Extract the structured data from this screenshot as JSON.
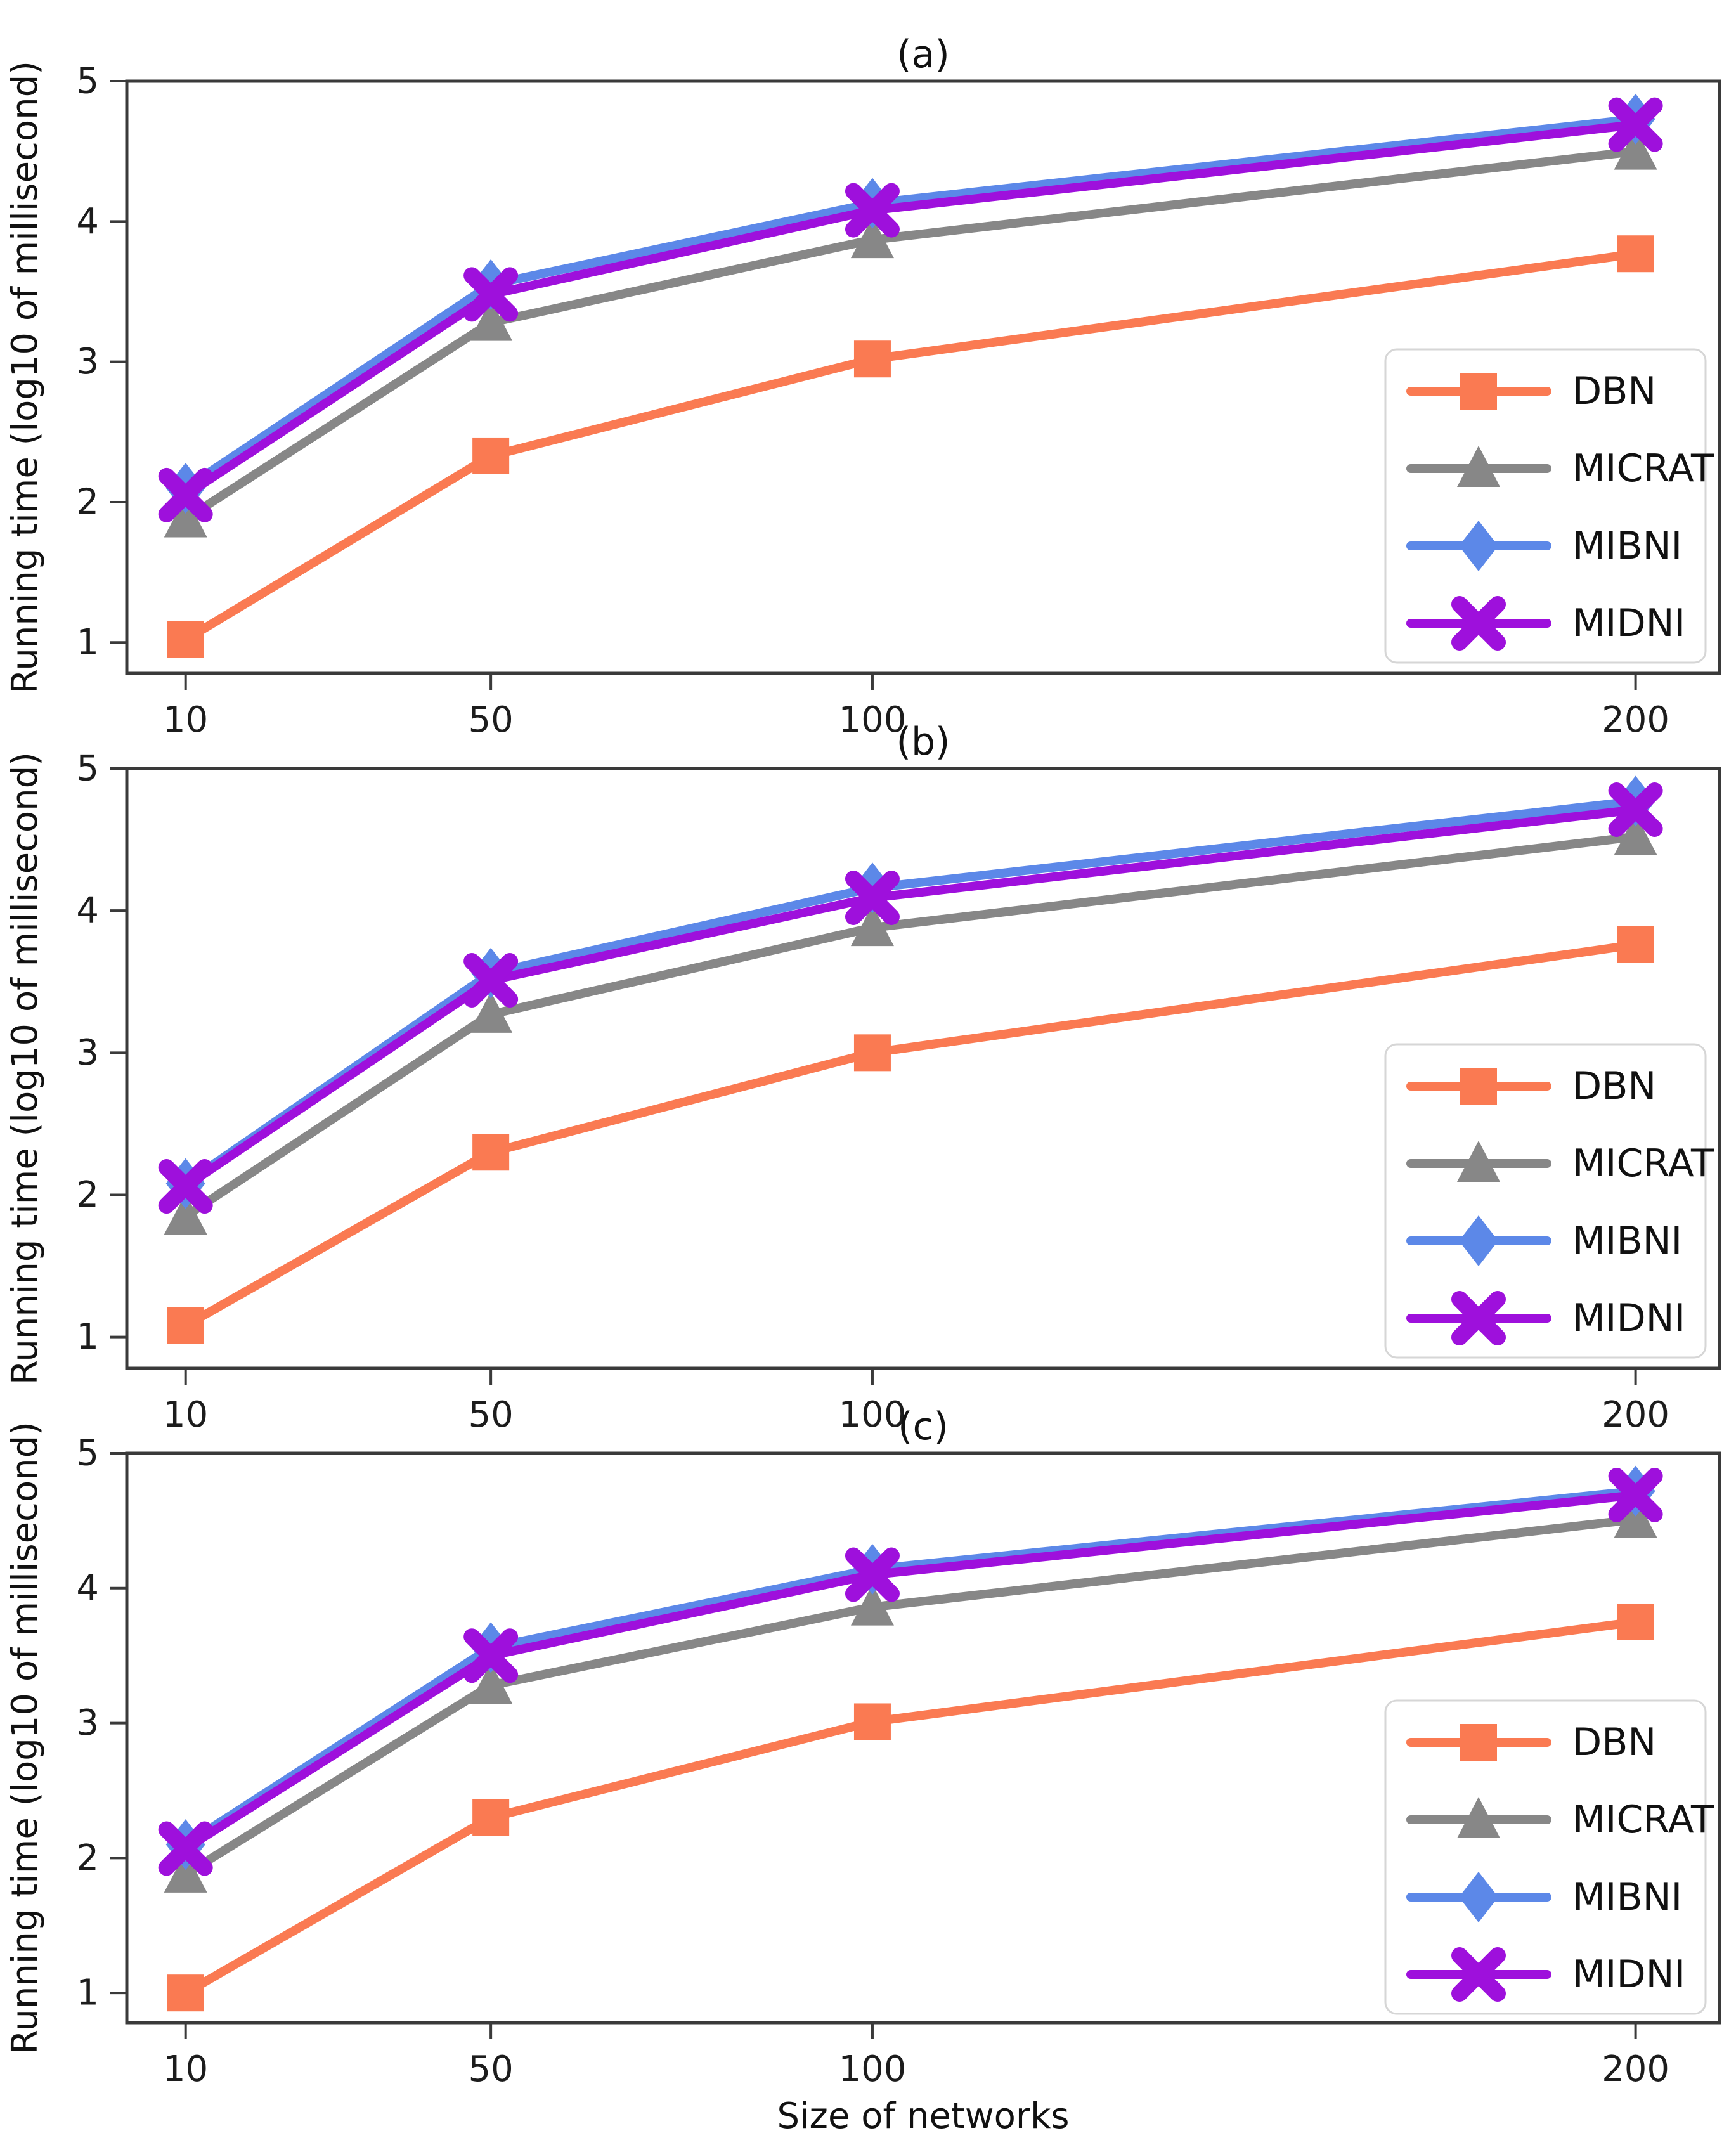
{
  "figure": {
    "ylabel": "Running time (log10 of millisecond)",
    "xlabel": "Size of networks",
    "background": "#ffffff",
    "text_color": "#1c1c1c",
    "spine_color": "#3a3a3a"
  },
  "legend": {
    "position": "lower right",
    "entries": [
      {
        "label": "DBN",
        "marker": "square-marker-icon",
        "marker_shape": "square",
        "color": "#FA7A52"
      },
      {
        "label": "MICRAT",
        "marker": "triangle-marker-icon",
        "marker_shape": "triangle-up",
        "color": "#878787"
      },
      {
        "label": "MIBNI",
        "marker": "diamond-marker-icon",
        "marker_shape": "diamond",
        "color": "#5C88E8"
      },
      {
        "label": "MIDNI",
        "marker": "x-marker-icon",
        "marker_shape": "x",
        "color": "#9E10DC"
      }
    ]
  },
  "chart_data": [
    {
      "type": "line",
      "title": "(a)",
      "xlabel": "",
      "ylabel": "Running time (log10 of millisecond)",
      "x": [
        10,
        50,
        100,
        200
      ],
      "x_tick_labels": [
        "10",
        "50",
        "100",
        "200"
      ],
      "y_ticks": [
        1,
        2,
        3,
        4,
        5
      ],
      "y_tick_labels": [
        "1",
        "2",
        "3",
        "4",
        "5"
      ],
      "xlim": [
        2.3,
        211
      ],
      "ylim": [
        0.78,
        5
      ],
      "grid": false,
      "legend_position": "lower right",
      "series": [
        {
          "name": "DBN",
          "color": "#FA7A52",
          "marker": "square",
          "values": [
            1.02,
            2.33,
            3.02,
            3.77
          ]
        },
        {
          "name": "MICRAT",
          "color": "#878787",
          "marker": "triangle-up",
          "values": [
            1.88,
            3.28,
            3.87,
            4.5
          ]
        },
        {
          "name": "MIBNI",
          "color": "#5C88E8",
          "marker": "diamond",
          "values": [
            2.1,
            3.55,
            4.13,
            4.73
          ]
        },
        {
          "name": "MIDNI",
          "color": "#9E10DC",
          "marker": "x",
          "values": [
            2.05,
            3.48,
            4.08,
            4.69
          ]
        }
      ]
    },
    {
      "type": "line",
      "title": "(b)",
      "xlabel": "",
      "ylabel": "Running time (log10 of millisecond)",
      "x": [
        10,
        50,
        100,
        200
      ],
      "x_tick_labels": [
        "10",
        "50",
        "100",
        "200"
      ],
      "y_ticks": [
        1,
        2,
        3,
        4,
        5
      ],
      "y_tick_labels": [
        "1",
        "2",
        "3",
        "4",
        "5"
      ],
      "xlim": [
        2.3,
        211
      ],
      "ylim": [
        0.78,
        5
      ],
      "grid": false,
      "legend_position": "lower right",
      "series": [
        {
          "name": "DBN",
          "color": "#FA7A52",
          "marker": "square",
          "values": [
            1.08,
            2.3,
            3.0,
            3.76
          ]
        },
        {
          "name": "MICRAT",
          "color": "#878787",
          "marker": "triangle-up",
          "values": [
            1.85,
            3.27,
            3.88,
            4.52
          ]
        },
        {
          "name": "MIBNI",
          "color": "#5C88E8",
          "marker": "diamond",
          "values": [
            2.08,
            3.56,
            4.16,
            4.77
          ]
        },
        {
          "name": "MIDNI",
          "color": "#9E10DC",
          "marker": "x",
          "values": [
            2.06,
            3.51,
            4.09,
            4.71
          ]
        }
      ]
    },
    {
      "type": "line",
      "title": "(c)",
      "xlabel": "Size of networks",
      "ylabel": "Running time (log10 of millisecond)",
      "x": [
        10,
        50,
        100,
        200
      ],
      "x_tick_labels": [
        "10",
        "50",
        "100",
        "200"
      ],
      "y_ticks": [
        1,
        2,
        3,
        4,
        5
      ],
      "y_tick_labels": [
        "1",
        "2",
        "3",
        "4",
        "5"
      ],
      "xlim": [
        2.3,
        211
      ],
      "ylim": [
        0.78,
        5
      ],
      "grid": false,
      "legend_position": "lower right",
      "series": [
        {
          "name": "DBN",
          "color": "#FA7A52",
          "marker": "square",
          "values": [
            1.0,
            2.3,
            3.01,
            3.75
          ]
        },
        {
          "name": "MICRAT",
          "color": "#878787",
          "marker": "triangle-up",
          "values": [
            1.88,
            3.28,
            3.86,
            4.51
          ]
        },
        {
          "name": "MIBNI",
          "color": "#5C88E8",
          "marker": "diamond",
          "values": [
            2.1,
            3.56,
            4.14,
            4.72
          ]
        },
        {
          "name": "MIDNI",
          "color": "#9E10DC",
          "marker": "x",
          "values": [
            2.07,
            3.5,
            4.1,
            4.69
          ]
        }
      ]
    }
  ]
}
